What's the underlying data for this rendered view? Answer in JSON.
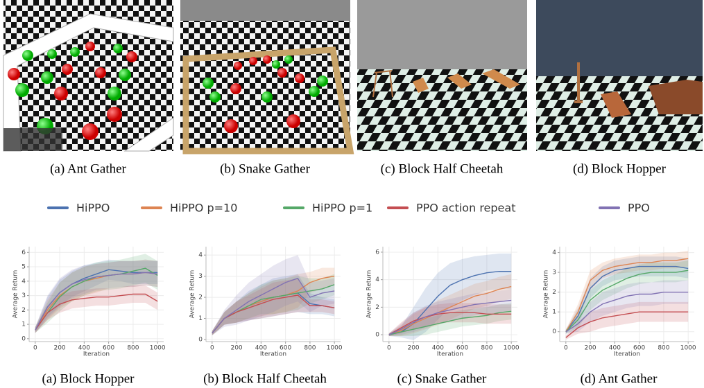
{
  "images": [
    {
      "caption": "(a) Ant Gather"
    },
    {
      "caption": "(b) Snake Gather"
    },
    {
      "caption": "(c) Block Half Cheetah"
    },
    {
      "caption": "(d) Block Hopper"
    }
  ],
  "chart_data": [
    {
      "type": "line",
      "caption": "(a) Block Hopper",
      "x_label": "Iteration",
      "y_label": "Average Return",
      "x": [
        0,
        100,
        200,
        300,
        400,
        500,
        600,
        700,
        800,
        900,
        1000
      ],
      "xlim": [
        -50,
        1050
      ],
      "xticks": [
        0,
        200,
        400,
        600,
        800,
        1000
      ],
      "ylim": [
        -0.2,
        6.4
      ],
      "yticks": [
        0,
        1,
        2,
        3,
        4,
        5,
        6
      ],
      "grid": true,
      "series": [
        {
          "name": "HiPPO",
          "color": "#4c72b0",
          "values": [
            0.6,
            2.2,
            3.2,
            3.8,
            4.2,
            4.5,
            4.8,
            4.7,
            4.6,
            4.6,
            4.6
          ],
          "std": [
            0.2,
            0.7,
            0.9,
            0.9,
            0.9,
            0.8,
            0.7,
            0.7,
            0.8,
            0.8,
            0.8
          ]
        },
        {
          "name": "HiPPO p=10",
          "color": "#dd8452",
          "values": [
            0.6,
            2.0,
            3.0,
            3.6,
            4.0,
            4.2,
            4.4,
            4.5,
            4.5,
            4.6,
            4.5
          ],
          "std": [
            0.2,
            0.7,
            0.9,
            1.0,
            1.0,
            1.0,
            0.9,
            0.9,
            0.9,
            0.9,
            0.9
          ]
        },
        {
          "name": "HiPPO p=1",
          "color": "#55a868",
          "values": [
            0.6,
            1.8,
            2.9,
            3.6,
            4.0,
            4.3,
            4.4,
            4.5,
            4.7,
            4.9,
            4.4
          ],
          "std": [
            0.2,
            0.7,
            1.0,
            1.0,
            1.0,
            1.0,
            1.0,
            1.0,
            1.0,
            1.0,
            1.0
          ]
        },
        {
          "name": "PPO action repeat",
          "color": "#c44e52",
          "values": [
            0.6,
            1.8,
            2.4,
            2.7,
            2.8,
            2.9,
            2.9,
            3.0,
            3.1,
            3.1,
            2.6
          ],
          "std": [
            0.2,
            0.5,
            0.6,
            0.6,
            0.6,
            0.6,
            0.6,
            0.6,
            0.6,
            0.6,
            0.6
          ]
        },
        {
          "name": "PPO",
          "color": "#8172b3",
          "values": [
            0.6,
            2.2,
            3.2,
            3.8,
            4.1,
            4.3,
            4.4,
            4.5,
            4.5,
            4.6,
            4.5
          ],
          "std": [
            0.2,
            0.8,
            1.0,
            1.0,
            1.0,
            0.9,
            0.9,
            0.9,
            0.9,
            0.9,
            0.9
          ]
        }
      ]
    },
    {
      "type": "line",
      "caption": "(b) Block Half Cheetah",
      "x_label": "Iteration",
      "y_label": "Average Return",
      "x": [
        0,
        100,
        200,
        300,
        400,
        500,
        600,
        700,
        800,
        900,
        1000
      ],
      "xlim": [
        -50,
        1050
      ],
      "xticks": [
        0,
        200,
        400,
        600,
        800,
        1000
      ],
      "ylim": [
        -0.1,
        4.4
      ],
      "yticks": [
        0,
        1,
        2,
        3,
        4
      ],
      "grid": true,
      "series": [
        {
          "color": "#4c72b0",
          "values": [
            0.3,
            1.0,
            1.3,
            1.6,
            1.8,
            2.0,
            2.1,
            2.2,
            1.7,
            1.6,
            1.5
          ],
          "std": [
            0.1,
            0.3,
            0.5,
            0.7,
            0.8,
            0.9,
            0.9,
            0.9,
            0.5,
            0.4,
            0.4
          ]
        },
        {
          "color": "#dd8452",
          "values": [
            0.3,
            1.0,
            1.3,
            1.6,
            1.8,
            2.0,
            2.1,
            2.3,
            2.7,
            2.9,
            3.0
          ],
          "std": [
            0.1,
            0.3,
            0.5,
            0.6,
            0.7,
            0.8,
            0.8,
            0.8,
            0.5,
            0.5,
            0.4
          ]
        },
        {
          "color": "#55a868",
          "values": [
            0.3,
            1.0,
            1.3,
            1.6,
            1.9,
            2.0,
            2.1,
            2.2,
            2.3,
            2.4,
            2.6
          ],
          "std": [
            0.1,
            0.3,
            0.5,
            0.6,
            0.7,
            0.8,
            0.8,
            0.8,
            0.6,
            0.5,
            0.5
          ]
        },
        {
          "color": "#c44e52",
          "values": [
            0.3,
            1.0,
            1.3,
            1.5,
            1.7,
            1.9,
            2.0,
            2.1,
            1.6,
            1.6,
            1.5
          ],
          "std": [
            0.1,
            0.3,
            0.5,
            0.6,
            0.7,
            0.8,
            0.8,
            0.8,
            0.3,
            0.3,
            0.3
          ]
        },
        {
          "color": "#8172b3",
          "values": [
            0.3,
            1.0,
            1.4,
            1.8,
            2.1,
            2.4,
            2.7,
            2.9,
            2.0,
            2.2,
            2.3
          ],
          "std": [
            0.1,
            0.4,
            0.7,
            0.9,
            1.0,
            1.1,
            1.1,
            1.1,
            0.7,
            0.6,
            0.6
          ]
        }
      ]
    },
    {
      "type": "line",
      "caption": "(c) Snake Gather",
      "x_label": "Iteration",
      "y_label": "Average Return",
      "x": [
        0,
        100,
        200,
        300,
        400,
        500,
        600,
        700,
        800,
        900,
        1000
      ],
      "xlim": [
        -50,
        1050
      ],
      "xticks": [
        0,
        200,
        400,
        600,
        800,
        1000
      ],
      "ylim": [
        -0.5,
        6.4
      ],
      "yticks": [
        0,
        2,
        4,
        6
      ],
      "grid": true,
      "series": [
        {
          "color": "#4c72b0",
          "values": [
            0,
            0.2,
            0.8,
            1.8,
            2.8,
            3.6,
            4.0,
            4.3,
            4.5,
            4.6,
            4.6
          ],
          "std": [
            0.1,
            0.4,
            1.2,
            1.6,
            1.7,
            1.6,
            1.5,
            1.4,
            1.3,
            1.3,
            1.3
          ]
        },
        {
          "color": "#dd8452",
          "values": [
            0,
            0.3,
            0.8,
            1.2,
            1.6,
            2.0,
            2.4,
            2.8,
            3.0,
            3.3,
            3.5
          ],
          "std": [
            0.1,
            0.4,
            0.7,
            0.8,
            0.9,
            0.9,
            0.9,
            0.9,
            0.9,
            0.9,
            0.9
          ]
        },
        {
          "color": "#55a868",
          "values": [
            0,
            0.2,
            0.4,
            0.6,
            0.8,
            1.0,
            1.2,
            1.3,
            1.4,
            1.6,
            1.7
          ],
          "std": [
            0.1,
            0.3,
            0.5,
            0.6,
            0.6,
            0.6,
            0.6,
            0.6,
            0.6,
            0.6,
            0.6
          ]
        },
        {
          "color": "#c44e52",
          "values": [
            0,
            0.5,
            1.0,
            1.3,
            1.5,
            1.6,
            1.6,
            1.6,
            1.5,
            1.5,
            1.5
          ],
          "std": [
            0.1,
            0.4,
            0.6,
            0.7,
            0.7,
            0.7,
            0.7,
            0.7,
            0.7,
            0.7,
            0.7
          ]
        },
        {
          "color": "#8172b3",
          "values": [
            0,
            0.4,
            0.9,
            1.3,
            1.6,
            1.8,
            2.0,
            2.2,
            2.3,
            2.4,
            2.5
          ],
          "std": [
            0.1,
            0.4,
            0.7,
            0.8,
            0.8,
            0.8,
            0.8,
            0.8,
            0.8,
            0.8,
            0.8
          ]
        }
      ]
    },
    {
      "type": "line",
      "caption": "(d) Ant Gather",
      "x_label": "Iteration",
      "y_label": "Average Return",
      "x": [
        0,
        100,
        200,
        300,
        400,
        500,
        600,
        700,
        800,
        900,
        1000
      ],
      "xlim": [
        -50,
        1050
      ],
      "xticks": [
        0,
        200,
        400,
        600,
        800,
        1000
      ],
      "ylim": [
        -0.5,
        4.3
      ],
      "yticks": [
        0,
        1,
        2,
        3,
        4
      ],
      "grid": true,
      "series": [
        {
          "color": "#4c72b0",
          "values": [
            0,
            0.8,
            2.2,
            2.8,
            3.1,
            3.2,
            3.3,
            3.3,
            3.3,
            3.3,
            3.2
          ],
          "std": [
            0.1,
            0.4,
            0.5,
            0.5,
            0.5,
            0.5,
            0.5,
            0.5,
            0.5,
            0.5,
            0.5
          ]
        },
        {
          "color": "#dd8452",
          "values": [
            0,
            1.0,
            2.6,
            3.1,
            3.3,
            3.4,
            3.5,
            3.5,
            3.6,
            3.6,
            3.7
          ],
          "std": [
            0.1,
            0.4,
            0.5,
            0.4,
            0.4,
            0.4,
            0.4,
            0.4,
            0.4,
            0.4,
            0.4
          ]
        },
        {
          "color": "#55a868",
          "values": [
            0,
            0.6,
            1.6,
            2.1,
            2.4,
            2.7,
            2.9,
            3.0,
            3.0,
            3.0,
            3.1
          ],
          "std": [
            0.1,
            0.4,
            0.5,
            0.5,
            0.5,
            0.5,
            0.5,
            0.5,
            0.5,
            0.5,
            0.5
          ]
        },
        {
          "color": "#c44e52",
          "values": [
            -0.3,
            0.2,
            0.5,
            0.7,
            0.8,
            0.9,
            1.0,
            1.0,
            1.0,
            1.0,
            1.0
          ],
          "std": [
            0.1,
            0.3,
            0.5,
            0.5,
            0.5,
            0.5,
            0.5,
            0.5,
            0.5,
            0.5,
            0.5
          ]
        },
        {
          "color": "#8172b3",
          "values": [
            0,
            0.4,
            1.0,
            1.4,
            1.6,
            1.8,
            1.9,
            1.9,
            2.0,
            2.0,
            2.0
          ],
          "std": [
            0.1,
            0.4,
            0.5,
            0.6,
            0.6,
            0.6,
            0.6,
            0.6,
            0.6,
            0.6,
            0.6
          ]
        }
      ]
    }
  ]
}
